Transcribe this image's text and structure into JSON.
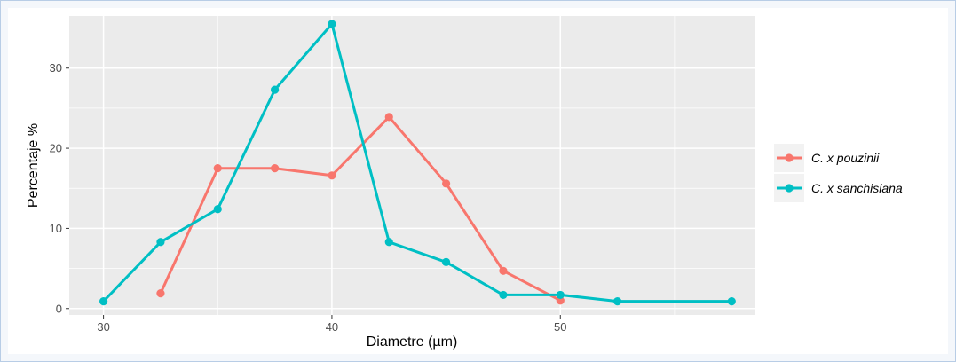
{
  "chart_data": {
    "type": "line",
    "xlabel": "Diametre (µm)",
    "ylabel": "Percentaje %",
    "xlim": [
      28.5,
      58.5
    ],
    "ylim": [
      -0.8,
      36.5
    ],
    "x_ticks": [
      30,
      40,
      50
    ],
    "x_minor_ticks": [
      35,
      45,
      55
    ],
    "y_ticks": [
      0,
      10,
      20,
      30
    ],
    "y_minor_ticks": [
      5,
      15,
      25,
      35
    ],
    "grid": true,
    "legend_position": "right",
    "background_color": "#ebebeb",
    "grid_color": "#ffffff",
    "series": [
      {
        "name": "C. x pouzinii",
        "color": "#f8766d",
        "points": [
          {
            "x": 32.5,
            "y": 1.9
          },
          {
            "x": 35,
            "y": 17.5
          },
          {
            "x": 37.5,
            "y": 17.5
          },
          {
            "x": 40,
            "y": 16.6
          },
          {
            "x": 42.5,
            "y": 23.9
          },
          {
            "x": 45,
            "y": 15.6
          },
          {
            "x": 47.5,
            "y": 4.7
          },
          {
            "x": 50,
            "y": 1.0
          }
        ]
      },
      {
        "name": "C. x sanchisiana",
        "color": "#00bfc4",
        "points": [
          {
            "x": 30,
            "y": 0.9
          },
          {
            "x": 32.5,
            "y": 8.3
          },
          {
            "x": 35,
            "y": 12.4
          },
          {
            "x": 37.5,
            "y": 27.3
          },
          {
            "x": 40,
            "y": 35.5
          },
          {
            "x": 42.5,
            "y": 8.3
          },
          {
            "x": 45,
            "y": 5.8
          },
          {
            "x": 47.5,
            "y": 1.7
          },
          {
            "x": 50,
            "y": 1.7
          },
          {
            "x": 52.5,
            "y": 0.9
          },
          {
            "x": 57.5,
            "y": 0.9
          }
        ]
      }
    ]
  }
}
